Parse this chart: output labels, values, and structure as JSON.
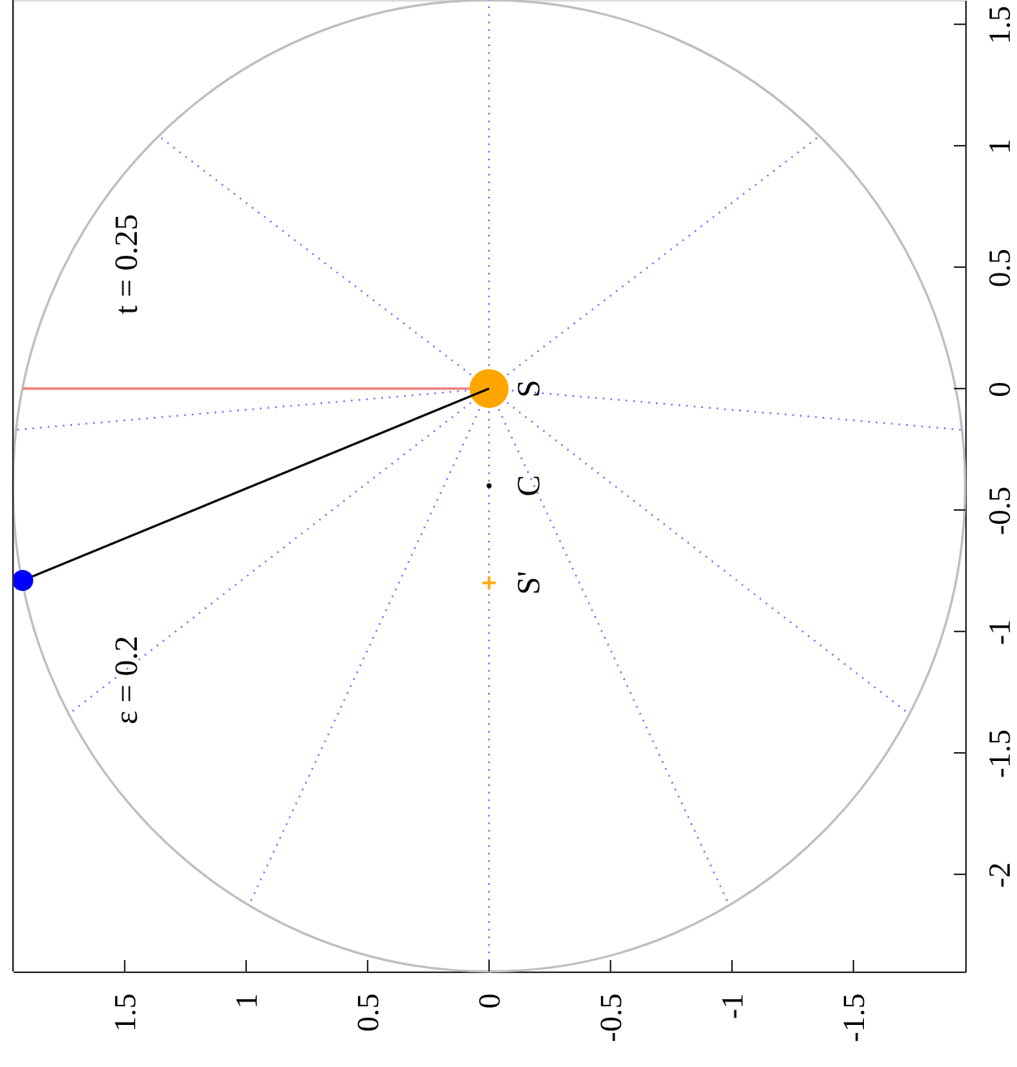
{
  "chart_data": {
    "type": "line",
    "xlim": [
      1.96,
      -1.96
    ],
    "ylim": [
      -2.4,
      1.6
    ],
    "xticks": [
      1.5,
      1,
      0.5,
      0,
      -0.5,
      -1,
      -1.5
    ],
    "yticks": [
      -2,
      -1.5,
      -1,
      -0.5,
      0,
      0.5,
      1,
      1.5
    ],
    "grid": false,
    "annotations": [
      "t = 0.25",
      "ε = 0.2"
    ],
    "series": [
      {
        "color": "#7070ff",
        "line_style": "dotted",
        "x": [
          0,
          0
        ],
        "values": [
          0,
          1.6
        ]
      },
      {
        "color": "#7070ff",
        "line_style": "dotted",
        "x": [
          0,
          1.36
        ],
        "values": [
          0,
          1.04
        ]
      },
      {
        "color": "#7070ff",
        "line_style": "dotted",
        "x": [
          0,
          1.95
        ],
        "values": [
          0,
          -0.17
        ]
      },
      {
        "color": "#7070ff",
        "line_style": "dotted",
        "x": [
          0,
          1.73
        ],
        "values": [
          0,
          -1.34
        ]
      },
      {
        "color": "#7070ff",
        "line_style": "dotted",
        "x": [
          0,
          0.99
        ],
        "values": [
          0,
          -2.13
        ]
      },
      {
        "color": "#7070ff",
        "line_style": "dotted",
        "x": [
          0,
          0
        ],
        "values": [
          0,
          -2.4
        ]
      },
      {
        "color": "#7070ff",
        "line_style": "dotted",
        "x": [
          0,
          -0.99
        ],
        "values": [
          0,
          -2.13
        ]
      },
      {
        "color": "#7070ff",
        "line_style": "dotted",
        "x": [
          0,
          -1.73
        ],
        "values": [
          0,
          -1.34
        ]
      },
      {
        "color": "#7070ff",
        "line_style": "dotted",
        "x": [
          0,
          -1.95
        ],
        "values": [
          0,
          -0.17
        ]
      },
      {
        "color": "#7070ff",
        "line_style": "dotted",
        "x": [
          0,
          -1.36
        ],
        "values": [
          0,
          1.04
        ]
      },
      {
        "color": "#f47c7c",
        "x": [
          0,
          1.92
        ],
        "values": [
          0,
          0
        ]
      },
      {
        "type": "scatter",
        "name": "S",
        "color": "#ffa500",
        "marker": "circle",
        "x": [
          0
        ],
        "values": [
          0
        ]
      },
      {
        "color": "#000000",
        "x": [
          0,
          1.92
        ],
        "values": [
          0,
          -0.79
        ]
      },
      {
        "type": "scatter",
        "name": "C",
        "color": "#000000",
        "marker": "circle",
        "x": [
          0
        ],
        "values": [
          -0.4
        ]
      },
      {
        "type": "scatter",
        "name": "S'",
        "color": "#ffa500",
        "marker": "cross",
        "x": [
          0
        ],
        "values": [
          -0.8
        ]
      },
      {
        "type": "scatter",
        "color": "#0000ff",
        "marker": "circle",
        "x": [
          1.92
        ],
        "values": [
          -0.79
        ]
      }
    ]
  }
}
